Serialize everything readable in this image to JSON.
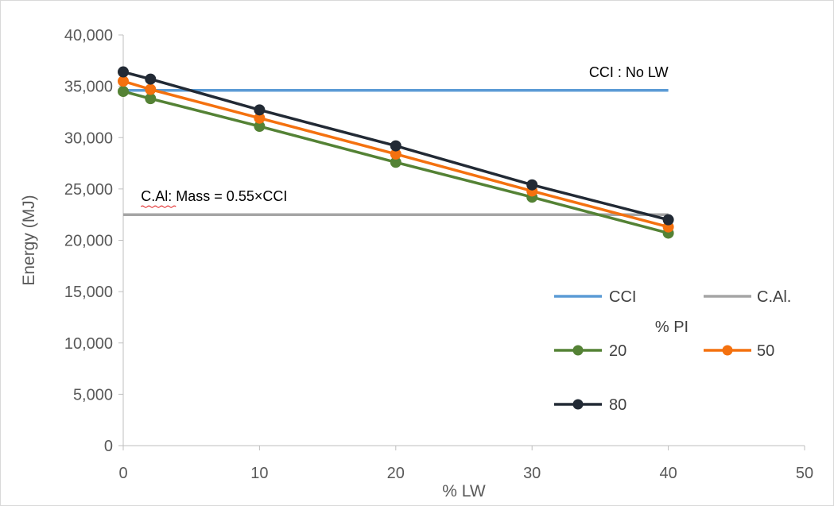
{
  "chart_data": {
    "type": "line",
    "title": "",
    "xlabel": "% LW",
    "ylabel": "Energy (MJ)",
    "xlim": [
      0,
      50
    ],
    "ylim": [
      0,
      40000
    ],
    "xticks": [
      0,
      10,
      20,
      30,
      40,
      50
    ],
    "yticks": [
      0,
      5000,
      10000,
      15000,
      20000,
      25000,
      30000,
      35000,
      40000
    ],
    "xtick_labels": [
      "0",
      "10",
      "20",
      "30",
      "40",
      "50"
    ],
    "ytick_labels": [
      "0",
      "5,000",
      "10,000",
      "15,000",
      "20,000",
      "25,000",
      "30,000",
      "35,000",
      "40,000"
    ],
    "grid": false,
    "legend_placement": "bottom-right",
    "legend_title": "% PI",
    "series": [
      {
        "name": "CCI",
        "color": "#5B9BD5",
        "markers": false,
        "x": [
          0,
          40
        ],
        "values": [
          34600,
          34600
        ]
      },
      {
        "name": "C.Al.",
        "color": "#A5A5A5",
        "markers": false,
        "x": [
          0,
          40
        ],
        "values": [
          22500,
          22500
        ]
      },
      {
        "name": "20",
        "color": "#548235",
        "markers": true,
        "x": [
          0,
          2,
          10,
          20,
          30,
          40
        ],
        "values": [
          34500,
          33800,
          31100,
          27600,
          24200,
          20700
        ]
      },
      {
        "name": "50",
        "color": "#F4710F",
        "markers": true,
        "x": [
          0,
          2,
          10,
          20,
          30,
          40
        ],
        "values": [
          35500,
          34700,
          31900,
          28400,
          24800,
          21300
        ]
      },
      {
        "name": "80",
        "color": "#222A35",
        "markers": true,
        "x": [
          0,
          2,
          10,
          20,
          30,
          40
        ],
        "values": [
          36400,
          35700,
          32700,
          29200,
          25400,
          22000
        ]
      }
    ],
    "annotations": [
      {
        "text": "CCI : No LW",
        "x": 40,
        "y": 34600,
        "anchor": "end"
      },
      {
        "text": "C.Al: Mass = 0.55×CCI",
        "x": 1.3,
        "y": 22500,
        "anchor": "start"
      }
    ]
  }
}
